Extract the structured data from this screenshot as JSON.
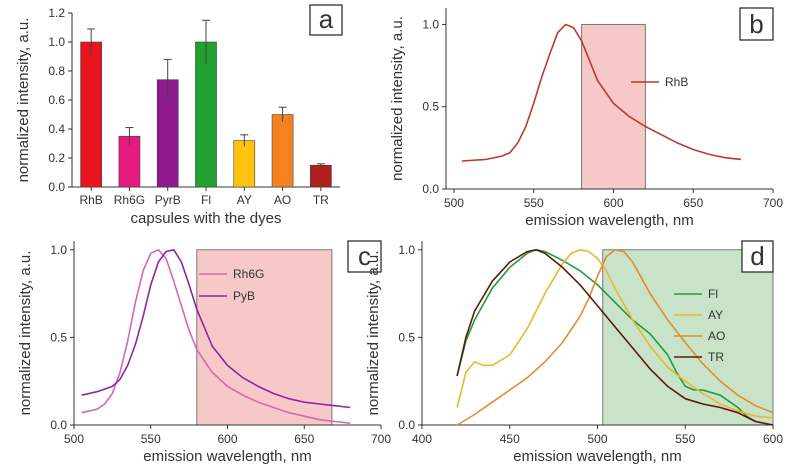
{
  "chart_data": [
    {
      "panel": "a",
      "type": "bar",
      "panel_letter": "a",
      "xlabel": "capsules with the dyes",
      "ylabel": "normalized intensity, a.u.",
      "ylim": [
        0,
        1.2
      ],
      "yticks": [
        0.0,
        0.2,
        0.4,
        0.6,
        0.8,
        1.0,
        1.2
      ],
      "ytick_labels": [
        "0.0",
        "0.2",
        "0.4",
        "0.6",
        "0.8",
        "1.0",
        "1.2"
      ],
      "categories": [
        "RhB",
        "Rh6G",
        "PyrB",
        "Fl",
        "AY",
        "AO",
        "TR"
      ],
      "values": [
        1.0,
        0.35,
        0.74,
        1.0,
        0.32,
        0.5,
        0.15
      ],
      "errors": [
        0.09,
        0.06,
        0.14,
        0.15,
        0.04,
        0.05,
        0.01
      ],
      "colors": [
        "#e8141e",
        "#e6197e",
        "#8e1a8e",
        "#1fa12e",
        "#ffc20e",
        "#f5821f",
        "#b01e1e"
      ]
    },
    {
      "panel": "b",
      "type": "line",
      "panel_letter": "b",
      "xlabel": "emission wavelength, nm",
      "ylabel": "normalized intensity, a.u.",
      "xlim": [
        495,
        700
      ],
      "ylim": [
        0,
        1.1
      ],
      "xticks": [
        500,
        550,
        600,
        650,
        700
      ],
      "xtick_labels": [
        "500",
        "550",
        "600",
        "650",
        "700"
      ],
      "yticks": [
        0.0,
        0.5,
        1.0
      ],
      "ytick_labels": [
        "0.0",
        "0.5",
        "1.0"
      ],
      "highlight": {
        "x": [
          580,
          620
        ],
        "y": [
          0,
          1.0
        ],
        "color": "#f4b6b6"
      },
      "series": [
        {
          "name": "RhB",
          "color": "#c0392b",
          "x": [
            505,
            520,
            530,
            535,
            540,
            545,
            550,
            555,
            560,
            565,
            570,
            575,
            580,
            585,
            590,
            600,
            610,
            620,
            630,
            640,
            650,
            660,
            670,
            680
          ],
          "y": [
            0.17,
            0.18,
            0.2,
            0.22,
            0.28,
            0.38,
            0.52,
            0.68,
            0.82,
            0.95,
            1.0,
            0.98,
            0.9,
            0.78,
            0.66,
            0.52,
            0.44,
            0.38,
            0.33,
            0.28,
            0.24,
            0.21,
            0.19,
            0.18
          ]
        }
      ]
    },
    {
      "panel": "c",
      "type": "line",
      "panel_letter": "c",
      "xlabel": "emission wavelength, nm",
      "ylabel": "normalized intensity, a.u.",
      "xlim": [
        500,
        700
      ],
      "ylim": [
        0,
        1.05
      ],
      "xticks": [
        500,
        550,
        600,
        650,
        700
      ],
      "xtick_labels": [
        "500",
        "550",
        "600",
        "650",
        "700"
      ],
      "yticks": [
        0.0,
        0.5,
        1.0
      ],
      "ytick_labels": [
        "0.0",
        "0.5",
        "1.0"
      ],
      "highlight": {
        "x": [
          580,
          668
        ],
        "y": [
          0,
          1.0
        ],
        "color": "#f4b6b6"
      },
      "series": [
        {
          "name": "Rh6G",
          "color": "#d966b3",
          "x": [
            505,
            515,
            520,
            525,
            530,
            535,
            540,
            545,
            550,
            555,
            560,
            565,
            570,
            575,
            580,
            590,
            600,
            610,
            620,
            630,
            640,
            650,
            660,
            670,
            680
          ],
          "y": [
            0.07,
            0.09,
            0.12,
            0.18,
            0.3,
            0.48,
            0.7,
            0.88,
            0.98,
            1.0,
            0.95,
            0.82,
            0.68,
            0.54,
            0.43,
            0.3,
            0.22,
            0.17,
            0.13,
            0.1,
            0.07,
            0.05,
            0.03,
            0.02,
            0.01
          ]
        },
        {
          "name": "PyB",
          "color": "#8e24aa",
          "x": [
            505,
            515,
            525,
            530,
            535,
            540,
            545,
            550,
            555,
            560,
            565,
            570,
            575,
            580,
            590,
            600,
            610,
            620,
            630,
            640,
            650,
            660,
            670,
            680
          ],
          "y": [
            0.17,
            0.19,
            0.22,
            0.26,
            0.34,
            0.46,
            0.62,
            0.8,
            0.93,
            0.99,
            1.0,
            0.93,
            0.8,
            0.66,
            0.45,
            0.34,
            0.27,
            0.22,
            0.18,
            0.15,
            0.13,
            0.12,
            0.11,
            0.1
          ]
        }
      ]
    },
    {
      "panel": "d",
      "type": "line",
      "panel_letter": "d",
      "xlabel": "emission wavelength, nm",
      "ylabel": "normalized intensity, a.u.",
      "xlim": [
        400,
        600
      ],
      "ylim": [
        0,
        1.05
      ],
      "xticks": [
        400,
        450,
        500,
        550,
        600
      ],
      "xtick_labels": [
        "400",
        "450",
        "500",
        "550",
        "600"
      ],
      "yticks": [
        0.0,
        0.5,
        1.0
      ],
      "ytick_labels": [
        "0.0",
        "0.5",
        "1.0"
      ],
      "highlight": {
        "x": [
          503,
          600
        ],
        "y": [
          0,
          1.0
        ],
        "color": "#b5d9b5"
      },
      "series": [
        {
          "name": "Fl",
          "color": "#1e9e3c",
          "x": [
            420,
            425,
            430,
            440,
            450,
            460,
            465,
            470,
            480,
            490,
            500,
            510,
            520,
            530,
            540,
            545,
            550,
            555,
            560,
            570,
            580,
            585,
            590
          ],
          "y": [
            0.28,
            0.48,
            0.6,
            0.78,
            0.9,
            0.98,
            1.0,
            0.99,
            0.94,
            0.88,
            0.8,
            0.7,
            0.6,
            0.52,
            0.4,
            0.3,
            0.22,
            0.2,
            0.2,
            0.17,
            0.1,
            0.05,
            0.02
          ]
        },
        {
          "name": "AY",
          "color": "#f0b429",
          "x": [
            420,
            425,
            430,
            435,
            440,
            450,
            460,
            470,
            480,
            485,
            490,
            495,
            500,
            505,
            510,
            520,
            530,
            540,
            550,
            560,
            570,
            580,
            590,
            600
          ],
          "y": [
            0.1,
            0.3,
            0.36,
            0.34,
            0.34,
            0.4,
            0.55,
            0.75,
            0.92,
            0.98,
            1.0,
            0.99,
            0.95,
            0.88,
            0.78,
            0.6,
            0.45,
            0.33,
            0.25,
            0.18,
            0.12,
            0.08,
            0.05,
            0.04
          ]
        },
        {
          "name": "AO",
          "color": "#e08e2b",
          "x": [
            420,
            430,
            440,
            450,
            460,
            470,
            480,
            490,
            495,
            500,
            505,
            510,
            515,
            520,
            525,
            530,
            540,
            550,
            560,
            570,
            580,
            590,
            600
          ],
          "y": [
            0.0,
            0.06,
            0.13,
            0.2,
            0.27,
            0.36,
            0.47,
            0.62,
            0.72,
            0.85,
            0.96,
            1.0,
            0.99,
            0.93,
            0.84,
            0.75,
            0.6,
            0.47,
            0.35,
            0.25,
            0.17,
            0.11,
            0.07
          ]
        },
        {
          "name": "TR",
          "color": "#5c1a0e",
          "x": [
            420,
            425,
            430,
            440,
            450,
            460,
            465,
            470,
            480,
            490,
            500,
            510,
            520,
            530,
            540,
            550,
            560,
            570,
            580,
            590,
            600
          ],
          "y": [
            0.28,
            0.5,
            0.65,
            0.82,
            0.93,
            0.99,
            1.0,
            0.98,
            0.9,
            0.8,
            0.68,
            0.56,
            0.44,
            0.32,
            0.22,
            0.15,
            0.12,
            0.1,
            0.07,
            0.02,
            0.0
          ]
        }
      ]
    }
  ]
}
